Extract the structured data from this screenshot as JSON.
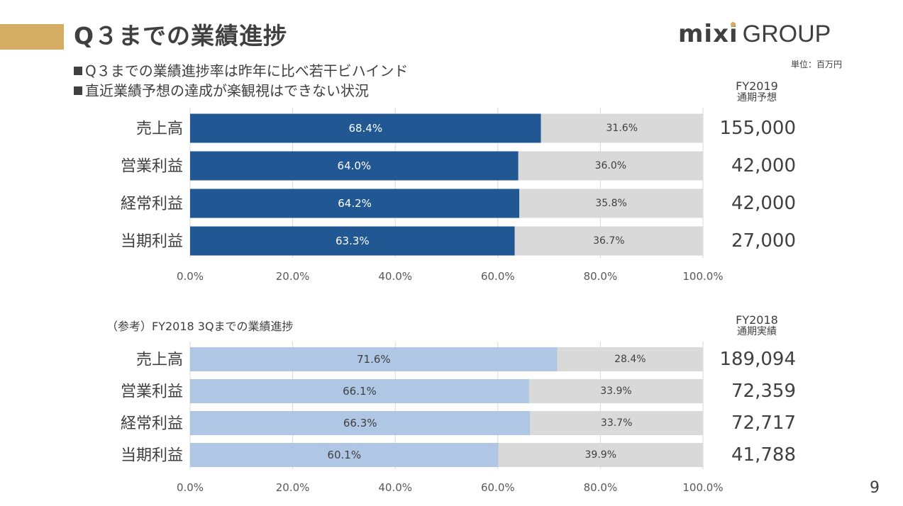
{
  "slide": {
    "title": "Q３までの業績進捗",
    "logo_mixi": "mixi",
    "logo_group": "GROUP",
    "unit": "単位：百万円",
    "bullets": [
      "Q３までの業績進捗率は昨年に比べ若干ビハインド",
      "直近業績予想の達成が楽観視はできない状況"
    ],
    "page_number": "9"
  },
  "colors": {
    "accent": "#D4AC62",
    "bar_fy2019": "#215894",
    "bar_fy2018": "#AFC6E4",
    "remainder": "#D9D9D9",
    "text": "#404040"
  },
  "chart_data": [
    {
      "type": "bar",
      "orientation": "horizontal",
      "stacked": true,
      "categories": [
        "売上高",
        "営業利益",
        "経常利益",
        "当期利益"
      ],
      "series": [
        {
          "values": [
            68.4,
            64.0,
            64.2,
            63.3
          ],
          "labels": [
            "68.4%",
            "64.0%",
            "64.2%",
            "63.3%"
          ]
        },
        {
          "values": [
            31.6,
            36.0,
            35.8,
            36.7
          ],
          "labels": [
            "31.6%",
            "36.0%",
            "35.8%",
            "36.7%"
          ]
        }
      ],
      "xlim": [
        0,
        100
      ],
      "xticks": [
        "0.0%",
        "20.0%",
        "40.0%",
        "60.0%",
        "80.0%",
        "100.0%"
      ],
      "grid": true,
      "side_header": [
        "FY2019",
        "通期予想"
      ],
      "side_values": [
        "155,000",
        "42,000",
        "42,000",
        "27,000"
      ]
    },
    {
      "type": "bar",
      "orientation": "horizontal",
      "stacked": true,
      "title": "（参考）FY2018 3Qまでの業績進捗",
      "categories": [
        "売上高",
        "営業利益",
        "経常利益",
        "当期利益"
      ],
      "series": [
        {
          "values": [
            71.6,
            66.1,
            66.3,
            60.1
          ],
          "labels": [
            "71.6%",
            "66.1%",
            "66.3%",
            "60.1%"
          ]
        },
        {
          "values": [
            28.4,
            33.9,
            33.7,
            39.9
          ],
          "labels": [
            "28.4%",
            "33.9%",
            "33.7%",
            "39.9%"
          ]
        }
      ],
      "xlim": [
        0,
        100
      ],
      "xticks": [
        "0.0%",
        "20.0%",
        "40.0%",
        "60.0%",
        "80.0%",
        "100.0%"
      ],
      "grid": true,
      "side_header": [
        "FY2018",
        "通期実績"
      ],
      "side_values": [
        "189,094",
        "72,359",
        "72,717",
        "41,788"
      ]
    }
  ]
}
